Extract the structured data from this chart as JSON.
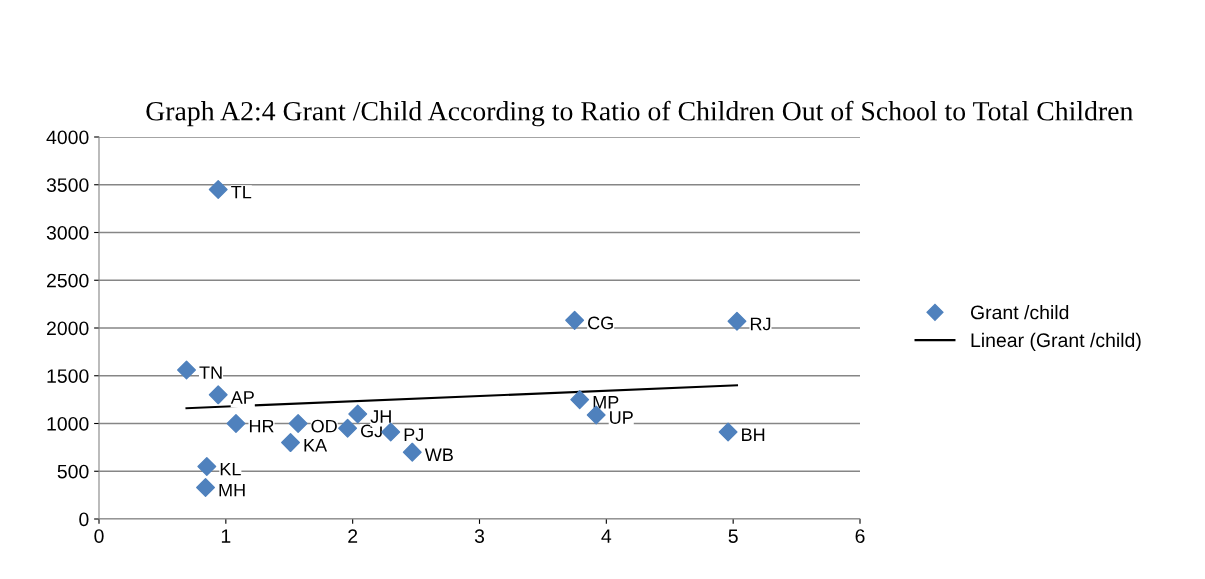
{
  "chart_data": {
    "type": "scatter",
    "title": "Graph A2:4 Grant /Child According to Ratio of Children Out of School to Total Children",
    "xlim": [
      0,
      6
    ],
    "xticks": [
      0,
      1,
      2,
      3,
      4,
      5,
      6
    ],
    "ylim": [
      0,
      4000
    ],
    "yticks": [
      0,
      500,
      1000,
      1500,
      2000,
      2500,
      3000,
      3500,
      4000
    ],
    "grid": "y",
    "legend": "right",
    "series": [
      {
        "name": "Grant /child",
        "marker": "diamond",
        "color": "#4f81bd",
        "x": [
          0.94,
          0.69,
          0.94,
          1.08,
          1.51,
          1.57,
          1.96,
          2.04,
          2.3,
          2.47,
          0.85,
          0.84,
          3.75,
          5.03,
          3.79,
          3.92,
          4.96
        ],
        "values": [
          3450,
          1560,
          1300,
          1000,
          800,
          1000,
          950,
          1100,
          910,
          700,
          550,
          330,
          2080,
          2070,
          1250,
          1090,
          910
        ]
      },
      {
        "name": "Linear (Grant /child)",
        "type": "line",
        "color": "#000000",
        "x": [
          0.69,
          5.03
        ],
        "values": [
          1160,
          1400
        ]
      }
    ],
    "annotations": [
      {
        "text": "TL",
        "x": 0.94,
        "y": 3450
      },
      {
        "text": "TN",
        "x": 0.69,
        "y": 1560
      },
      {
        "text": "AP",
        "x": 0.94,
        "y": 1300
      },
      {
        "text": "HR",
        "x": 1.08,
        "y": 1000
      },
      {
        "text": "KA",
        "x": 1.51,
        "y": 800
      },
      {
        "text": "OD",
        "x": 1.57,
        "y": 1000
      },
      {
        "text": "GJ",
        "x": 1.96,
        "y": 950
      },
      {
        "text": "JH",
        "x": 2.04,
        "y": 1100
      },
      {
        "text": "PJ",
        "x": 2.3,
        "y": 910
      },
      {
        "text": "WB",
        "x": 2.47,
        "y": 700
      },
      {
        "text": "KL",
        "x": 0.85,
        "y": 550
      },
      {
        "text": "MH",
        "x": 0.84,
        "y": 330
      },
      {
        "text": "CG",
        "x": 3.75,
        "y": 2080
      },
      {
        "text": "RJ",
        "x": 5.03,
        "y": 2070
      },
      {
        "text": "MP",
        "x": 3.79,
        "y": 1250
      },
      {
        "text": "UP",
        "x": 3.92,
        "y": 1090
      },
      {
        "text": "BH",
        "x": 4.96,
        "y": 910
      }
    ]
  }
}
